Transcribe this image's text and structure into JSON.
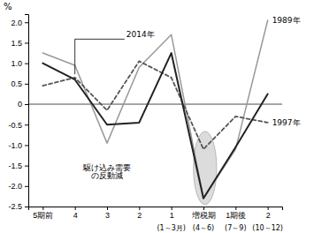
{
  "chart_data": {
    "type": "line",
    "y_label": "%",
    "categories": [
      "5期前",
      "4",
      "3",
      "2",
      "1",
      "増税期",
      "1期後",
      "2"
    ],
    "category_sublabels": [
      null,
      null,
      null,
      null,
      "(1～3月)",
      "(4～6)",
      "(7～9)",
      "(10～12)"
    ],
    "series": [
      {
        "name": "1989年",
        "color": "#999999",
        "line_style": "solid",
        "values": [
          1.25,
          0.95,
          -0.95,
          0.9,
          1.7,
          -2.3,
          -1.1,
          2.05
        ]
      },
      {
        "name": "1997年",
        "color": "#555555",
        "line_style": "dashed",
        "values": [
          0.45,
          0.65,
          -0.15,
          1.05,
          0.65,
          -1.1,
          -0.3,
          -0.45
        ]
      },
      {
        "name": "2014年",
        "color": "#222222",
        "line_style": "solid",
        "values": [
          1.0,
          0.6,
          -0.5,
          -0.45,
          1.25,
          -2.3,
          -1.05,
          0.25
        ]
      }
    ],
    "annotation": "駆け込み需要\nの反動減",
    "ylim": [
      -2.5,
      2.2
    ],
    "yticks": [
      -2.5,
      {
        "value": -2.0,
        "label": "-2.0"
      },
      -1.5,
      {
        "value": -1.0,
        "label": "-1.0"
      },
      -0.5,
      0,
      0.5,
      {
        "value": 1.0,
        "label": "1.0"
      },
      1.5,
      {
        "value": 2.0,
        "label": "2.0"
      }
    ],
    "grid": false
  }
}
